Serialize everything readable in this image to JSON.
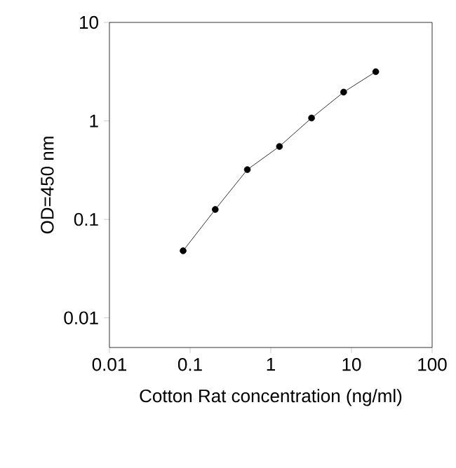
{
  "chart_data": {
    "type": "line",
    "xlabel": "Cotton Rat concentration (ng/ml)",
    "ylabel": "OD=450 nm",
    "log": "xy",
    "marker": "circle",
    "line_style": "solid",
    "grid": false,
    "x": [
      0.08192,
      0.2048,
      0.512,
      1.28,
      3.2,
      8,
      20
    ],
    "series": [
      {
        "color": "#000000",
        "values": [
          0.048,
          0.126,
          0.32,
          0.55,
          1.07,
          1.96,
          3.16
        ]
      }
    ],
    "xlim": [
      0.01,
      100
    ],
    "ylim": [
      0.005,
      10
    ],
    "xticks": [
      0.01,
      0.1,
      1,
      10,
      100
    ],
    "yticks": [
      0.01,
      0.1,
      1,
      10
    ]
  }
}
